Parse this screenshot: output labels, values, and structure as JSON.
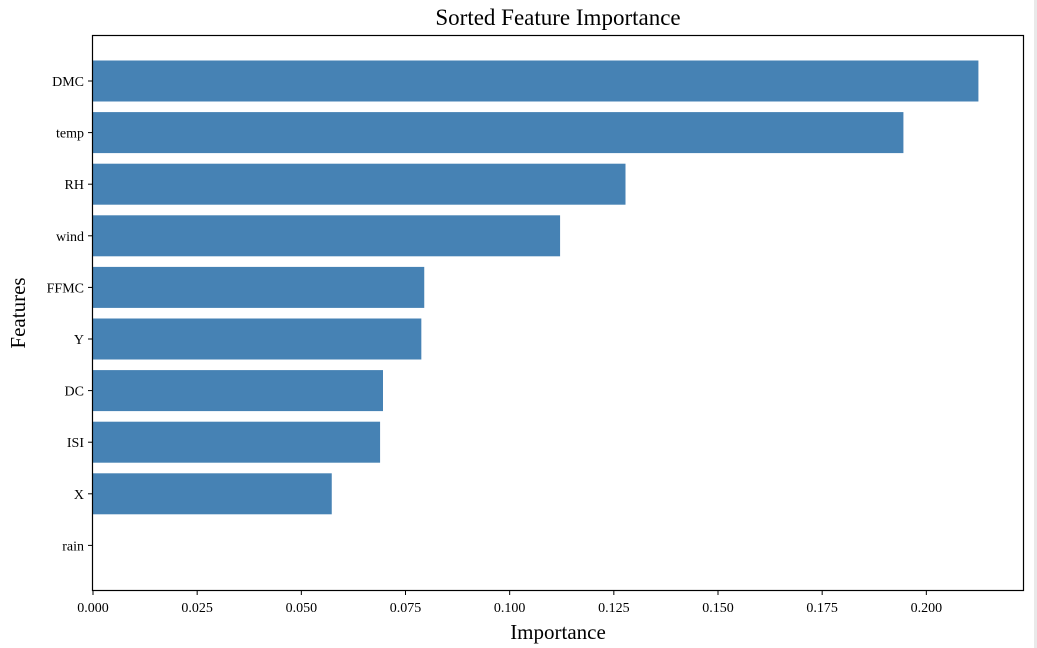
{
  "chart_data": {
    "type": "bar",
    "orientation": "horizontal",
    "title": "Sorted Feature Importance",
    "xlabel": "Importance",
    "ylabel": "Features",
    "categories": [
      "DMC",
      "temp",
      "RH",
      "wind",
      "FFMC",
      "Y",
      "DC",
      "ISI",
      "X",
      "rain"
    ],
    "values": [
      0.2125,
      0.1945,
      0.1278,
      0.1121,
      0.0795,
      0.0788,
      0.0696,
      0.0689,
      0.0573,
      0.0
    ],
    "xlim": [
      0.0,
      0.2232
    ],
    "xticks": [
      "0.000",
      "0.025",
      "0.050",
      "0.075",
      "0.100",
      "0.125",
      "0.150",
      "0.175",
      "0.200"
    ],
    "xtick_values": [
      0.0,
      0.025,
      0.05,
      0.075,
      0.1,
      0.125,
      0.15,
      0.175,
      0.2
    ],
    "grid": false,
    "legend": "none",
    "colors": {
      "bar": "#4682b4",
      "axes": "#000000",
      "background": "#ffffff"
    }
  }
}
